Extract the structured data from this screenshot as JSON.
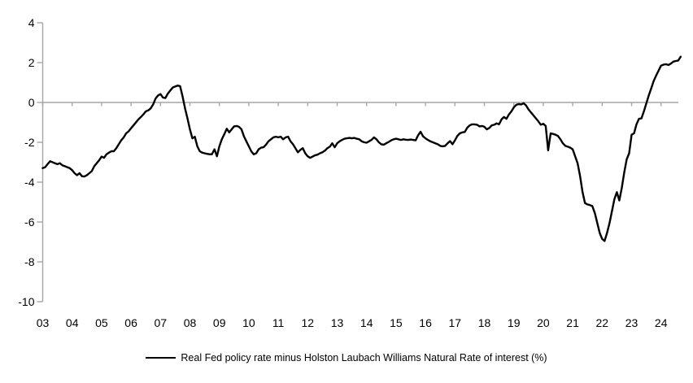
{
  "chart_data": {
    "type": "line",
    "title": "",
    "xlabel": "",
    "ylabel": "",
    "ylim": [
      -10,
      4
    ],
    "yticks": [
      4,
      2,
      0,
      -2,
      -4,
      -6,
      -8,
      -10
    ],
    "xtick_labels": [
      "03",
      "04",
      "05",
      "06",
      "07",
      "08",
      "09",
      "10",
      "11",
      "12",
      "13",
      "14",
      "15",
      "16",
      "17",
      "18",
      "19",
      "20",
      "21",
      "22",
      "23",
      "24"
    ],
    "x_start_year": 2003,
    "x_step": "monthly",
    "grid": "zero-line-only",
    "legend_position": "bottom-center",
    "axis_color": "#a6a6a6",
    "background_color": "#ffffff",
    "series": [
      {
        "name": "Real Fed policy rate minus Holston Laubach Williams Natural Rate of interest (%)",
        "color": "#000000",
        "values": [
          -3.3,
          -3.25,
          -3.1,
          -2.95,
          -3.0,
          -3.05,
          -3.1,
          -3.05,
          -3.15,
          -3.2,
          -3.25,
          -3.3,
          -3.4,
          -3.55,
          -3.65,
          -3.55,
          -3.7,
          -3.72,
          -3.65,
          -3.55,
          -3.45,
          -3.2,
          -3.05,
          -2.9,
          -2.72,
          -2.78,
          -2.6,
          -2.52,
          -2.45,
          -2.45,
          -2.3,
          -2.1,
          -1.9,
          -1.75,
          -1.55,
          -1.45,
          -1.3,
          -1.15,
          -1.0,
          -0.85,
          -0.73,
          -0.6,
          -0.45,
          -0.4,
          -0.3,
          -0.1,
          0.2,
          0.35,
          0.42,
          0.25,
          0.22,
          0.45,
          0.6,
          0.75,
          0.8,
          0.85,
          0.82,
          0.3,
          -0.3,
          -0.8,
          -1.35,
          -1.8,
          -1.72,
          -2.2,
          -2.45,
          -2.52,
          -2.55,
          -2.58,
          -2.6,
          -2.6,
          -2.35,
          -2.7,
          -2.2,
          -1.85,
          -1.6,
          -1.32,
          -1.5,
          -1.35,
          -1.2,
          -1.18,
          -1.22,
          -1.35,
          -1.7,
          -1.95,
          -2.2,
          -2.45,
          -2.6,
          -2.55,
          -2.35,
          -2.27,
          -2.25,
          -2.12,
          -1.95,
          -1.85,
          -1.75,
          -1.72,
          -1.75,
          -1.72,
          -1.85,
          -1.75,
          -1.72,
          -1.95,
          -2.1,
          -2.3,
          -2.5,
          -2.38,
          -2.3,
          -2.55,
          -2.7,
          -2.78,
          -2.72,
          -2.65,
          -2.62,
          -2.55,
          -2.5,
          -2.42,
          -2.3,
          -2.22,
          -2.05,
          -2.25,
          -2.05,
          -1.95,
          -1.88,
          -1.82,
          -1.8,
          -1.78,
          -1.8,
          -1.78,
          -1.82,
          -1.85,
          -1.95,
          -2.0,
          -2.02,
          -1.95,
          -1.88,
          -1.75,
          -1.85,
          -2.0,
          -2.1,
          -2.12,
          -2.05,
          -1.98,
          -1.9,
          -1.85,
          -1.82,
          -1.85,
          -1.88,
          -1.85,
          -1.87,
          -1.88,
          -1.86,
          -1.88,
          -1.9,
          -1.65,
          -1.47,
          -1.7,
          -1.8,
          -1.88,
          -1.95,
          -2.0,
          -2.05,
          -2.1,
          -2.18,
          -2.2,
          -2.18,
          -2.05,
          -1.94,
          -2.1,
          -1.9,
          -1.68,
          -1.55,
          -1.5,
          -1.48,
          -1.27,
          -1.15,
          -1.1,
          -1.1,
          -1.12,
          -1.2,
          -1.18,
          -1.22,
          -1.35,
          -1.28,
          -1.15,
          -1.12,
          -1.05,
          -1.1,
          -0.85,
          -0.73,
          -0.82,
          -0.6,
          -0.45,
          -0.25,
          -0.12,
          -0.08,
          -0.1,
          -0.04,
          -0.15,
          -0.35,
          -0.5,
          -0.65,
          -0.8,
          -0.95,
          -1.12,
          -1.07,
          -1.18,
          -2.4,
          -1.55,
          -1.58,
          -1.62,
          -1.68,
          -1.85,
          -2.05,
          -2.18,
          -2.22,
          -2.27,
          -2.35,
          -2.7,
          -3.05,
          -3.7,
          -4.5,
          -5.05,
          -5.12,
          -5.15,
          -5.2,
          -5.55,
          -6.05,
          -6.55,
          -6.85,
          -6.95,
          -6.55,
          -6.05,
          -5.45,
          -4.85,
          -4.5,
          -4.92,
          -4.3,
          -3.5,
          -2.85,
          -2.55,
          -1.62,
          -1.55,
          -1.1,
          -0.82,
          -0.8,
          -0.45,
          -0.05,
          0.35,
          0.7,
          1.08,
          1.35,
          1.6,
          1.85,
          1.9,
          1.92,
          1.88,
          1.95,
          2.05,
          2.08,
          2.1,
          2.3
        ]
      }
    ]
  }
}
